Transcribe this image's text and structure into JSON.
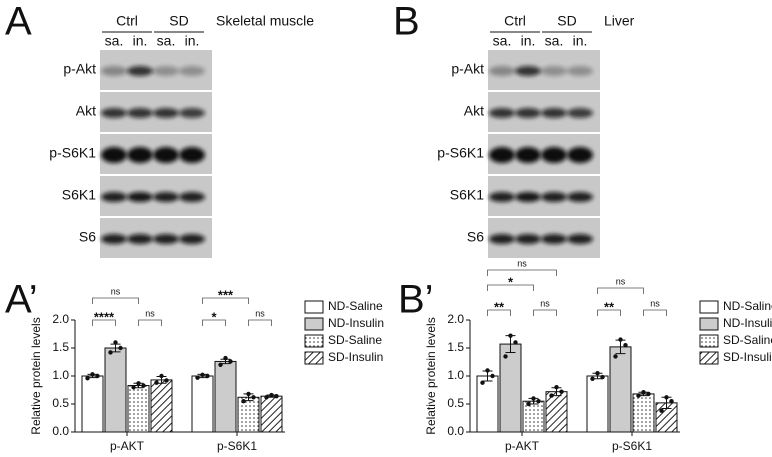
{
  "blots": [
    {
      "panel": "A",
      "groups": [
        "Ctrl",
        "SD"
      ],
      "tissue": "Skeletal muscle",
      "lanes": [
        "sa.",
        "in.",
        "sa.",
        "in."
      ],
      "rows": [
        "p-Akt",
        "Akt",
        "p-S6K1",
        "S6K1",
        "S6"
      ]
    },
    {
      "panel": "B",
      "groups": [
        "Ctrl",
        "SD"
      ],
      "tissue": "Liver",
      "lanes": [
        "sa.",
        "in.",
        "sa.",
        "in."
      ],
      "rows": [
        "p-Akt",
        "Akt",
        "p-S6K1",
        "S6K1",
        "S6"
      ]
    }
  ],
  "chart_data": [
    {
      "type": "bar",
      "panel": "A’",
      "y_label": "Relative protein levels",
      "categories": [
        "p-AKT",
        "p-S6K1"
      ],
      "ylim": [
        0,
        2
      ],
      "yticks": [
        {
          "value": 0,
          "label": "0.0"
        },
        0.5,
        {
          "value": 1,
          "label": "1.0"
        },
        1.5,
        {
          "value": 2,
          "label": "2.0"
        }
      ],
      "series": [
        {
          "name": "ND-Saline",
          "color": "#ffffff",
          "pattern": "none",
          "values": [
            1.0,
            1.0
          ],
          "errors": [
            0.03,
            0.03
          ],
          "points": [
            [
              0.96,
              1.03,
              1.0
            ],
            [
              0.97,
              1.02,
              1.0
            ]
          ]
        },
        {
          "name": "ND-Insulin",
          "color": "#cccccc",
          "pattern": "none",
          "values": [
            1.5,
            1.26
          ],
          "errors": [
            0.07,
            0.04
          ],
          "points": [
            [
              1.42,
              1.6,
              1.5
            ],
            [
              1.2,
              1.32,
              1.26
            ]
          ]
        },
        {
          "name": "SD-Saline",
          "color": "#ffffff",
          "pattern": "dots",
          "values": [
            0.83,
            0.62
          ],
          "errors": [
            0.04,
            0.06
          ],
          "points": [
            [
              0.8,
              0.87,
              0.83
            ],
            [
              0.55,
              0.68,
              0.62
            ]
          ]
        },
        {
          "name": "SD-Insulin",
          "color": "#ffffff",
          "pattern": "hatch",
          "values": [
            0.93,
            0.64
          ],
          "errors": [
            0.06,
            0.02
          ],
          "points": [
            [
              0.88,
              1.0,
              0.92
            ],
            [
              0.62,
              0.66,
              0.64
            ]
          ]
        }
      ],
      "annotations": [
        "ns",
        "****",
        "ns",
        "***",
        "*",
        "ns"
      ]
    },
    {
      "type": "bar",
      "panel": "B’",
      "y_label": "Relative protein levels",
      "categories": [
        "p-AKT",
        "p-S6K1"
      ],
      "ylim": [
        0,
        2
      ],
      "yticks": [
        {
          "value": 0,
          "label": "0.0"
        },
        0.5,
        {
          "value": 1,
          "label": "1.0"
        },
        1.5,
        {
          "value": 2,
          "label": "2.0"
        }
      ],
      "series": [
        {
          "name": "ND-Saline",
          "color": "#ffffff",
          "pattern": "none",
          "values": [
            1.0,
            1.0
          ],
          "errors": [
            0.09,
            0.05
          ],
          "points": [
            [
              0.88,
              1.1,
              1.0
            ],
            [
              0.95,
              1.05,
              0.98
            ]
          ]
        },
        {
          "name": "ND-Insulin",
          "color": "#cccccc",
          "pattern": "none",
          "values": [
            1.57,
            1.52
          ],
          "errors": [
            0.15,
            0.12
          ],
          "points": [
            [
              1.35,
              1.72,
              1.6
            ],
            [
              1.35,
              1.65,
              1.55
            ]
          ]
        },
        {
          "name": "SD-Saline",
          "color": "#ffffff",
          "pattern": "dots",
          "values": [
            0.55,
            0.68
          ],
          "errors": [
            0.05,
            0.03
          ],
          "points": [
            [
              0.5,
              0.6,
              0.55
            ],
            [
              0.65,
              0.71,
              0.68
            ]
          ]
        },
        {
          "name": "SD-Insulin",
          "color": "#ffffff",
          "pattern": "hatch",
          "values": [
            0.72,
            0.52
          ],
          "errors": [
            0.07,
            0.1
          ],
          "points": [
            [
              0.65,
              0.8,
              0.72
            ],
            [
              0.38,
              0.62,
              0.55
            ]
          ]
        }
      ],
      "annotations": [
        "ns",
        "*",
        "**",
        "ns",
        "ns",
        "**",
        "ns"
      ]
    }
  ]
}
